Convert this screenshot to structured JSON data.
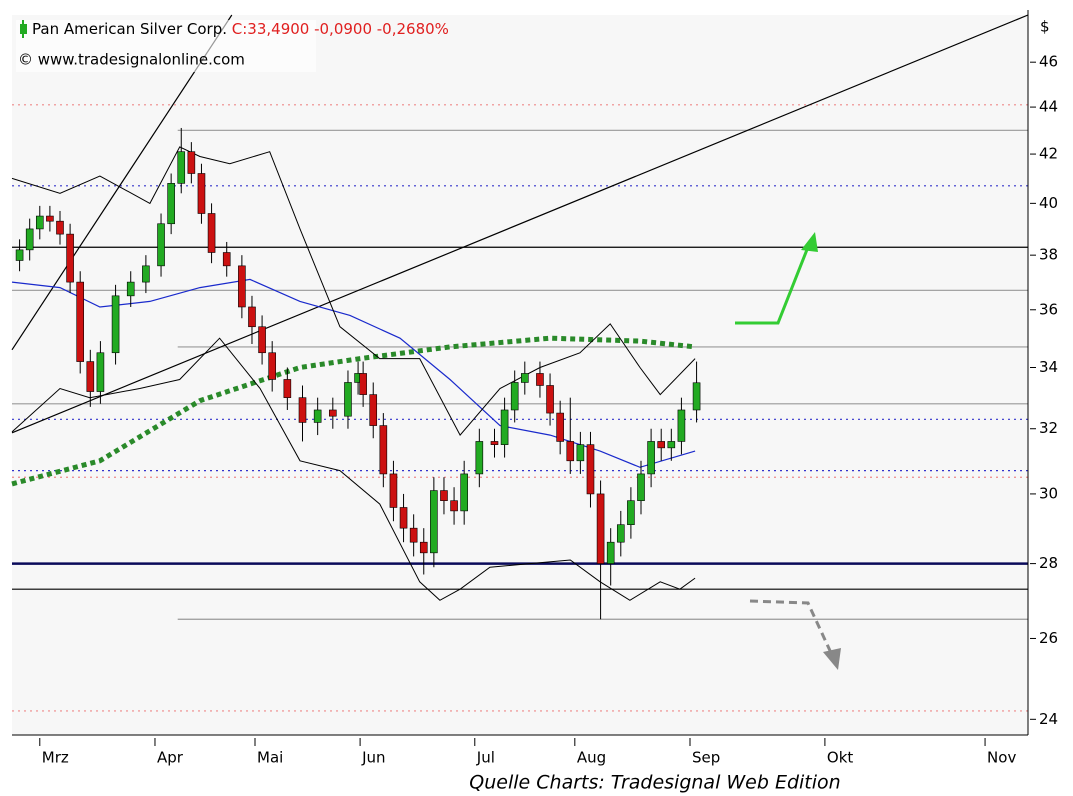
{
  "chart_data": {
    "type": "candlestick",
    "title": "Pan American Silver Corp.",
    "quote": "C:33,4900 -0,0900 -0,2680%",
    "copyright": "© www.tradesignalonline.com",
    "y_axis_label": "$",
    "source": "Quelle Charts: Tradesignal Web Edition",
    "log_y": true,
    "up_color": "#22aa22",
    "down_color": "#cc1111",
    "xlim": [
      -5.5,
      195.6
    ],
    "ylim": [
      23.63,
      48.2
    ],
    "yticks": [
      24,
      26,
      28,
      30,
      32,
      34,
      36,
      38,
      40,
      42,
      44,
      46
    ],
    "xticks": [
      {
        "value": 0,
        "label": "Mrz"
      },
      {
        "value": 22.8,
        "label": "Apr"
      },
      {
        "value": 42.6,
        "label": "Mai"
      },
      {
        "value": 63.4,
        "label": "Jun"
      },
      {
        "value": 86.1,
        "label": "Jul"
      },
      {
        "value": 105.9,
        "label": "Aug"
      },
      {
        "value": 128.7,
        "label": "Sep"
      },
      {
        "value": 155.4,
        "label": "Okt"
      },
      {
        "value": 187.1,
        "label": "Nov"
      }
    ],
    "x": [
      -4,
      -2,
      0,
      2,
      4,
      6,
      8,
      10,
      12,
      15,
      18,
      21,
      24,
      26,
      28,
      30,
      32,
      34,
      37,
      40,
      42,
      44,
      46,
      49,
      52,
      55,
      58,
      61,
      63,
      64,
      66,
      68,
      70,
      72,
      74,
      76,
      78,
      80,
      82,
      84,
      87,
      90,
      92,
      94,
      96,
      99,
      101,
      103,
      105,
      107,
      109,
      111,
      113,
      115,
      117,
      119,
      121,
      123,
      125,
      127,
      130
    ],
    "open": [
      37.8,
      38.2,
      39.0,
      39.5,
      39.3,
      38.8,
      37.0,
      34.2,
      33.2,
      34.5,
      36.5,
      37.0,
      37.6,
      39.2,
      40.8,
      42.1,
      41.2,
      39.6,
      38.1,
      37.6,
      36.1,
      35.4,
      34.5,
      33.6,
      33.0,
      32.2,
      32.6,
      32.4,
      33.5,
      33.8,
      33.1,
      32.1,
      30.6,
      29.6,
      29.0,
      28.6,
      28.3,
      30.1,
      29.8,
      29.5,
      30.6,
      31.6,
      31.5,
      32.6,
      33.5,
      33.8,
      33.4,
      32.5,
      31.6,
      31.0,
      31.5,
      30.0,
      28.0,
      28.6,
      29.1,
      29.8,
      30.6,
      31.6,
      31.4,
      31.6,
      32.6
    ],
    "high": [
      38.6,
      39.4,
      39.9,
      39.9,
      39.7,
      39.2,
      37.4,
      34.6,
      34.9,
      36.9,
      37.4,
      38.0,
      39.6,
      41.2,
      43.1,
      42.5,
      41.6,
      40.0,
      38.5,
      38.0,
      36.5,
      35.8,
      34.9,
      34.0,
      33.4,
      33.0,
      33.0,
      33.9,
      34.2,
      34.2,
      33.5,
      32.5,
      31.0,
      30.0,
      29.4,
      29.0,
      30.5,
      30.5,
      30.2,
      31.0,
      32.0,
      32.0,
      33.0,
      33.9,
      34.2,
      34.2,
      33.8,
      32.9,
      33.0,
      31.9,
      31.9,
      30.4,
      29.0,
      29.5,
      30.2,
      31.0,
      32.0,
      32.0,
      32.0,
      33.0,
      34.2
    ],
    "low": [
      37.4,
      37.8,
      38.6,
      38.9,
      38.4,
      36.6,
      33.8,
      32.7,
      32.8,
      34.1,
      36.1,
      36.6,
      37.2,
      38.8,
      40.4,
      40.8,
      39.2,
      37.7,
      37.2,
      35.7,
      34.8,
      34.1,
      33.2,
      32.6,
      31.6,
      31.8,
      32.0,
      32.0,
      33.1,
      32.7,
      31.7,
      30.2,
      29.2,
      28.6,
      28.2,
      27.7,
      27.9,
      29.4,
      29.1,
      29.1,
      30.2,
      31.1,
      31.1,
      32.2,
      33.1,
      33.0,
      32.1,
      31.2,
      30.6,
      30.6,
      29.6,
      26.5,
      27.4,
      28.2,
      28.7,
      29.4,
      30.2,
      31.0,
      31.0,
      31.2,
      32.2
    ],
    "close": [
      38.2,
      39.0,
      39.5,
      39.3,
      38.8,
      37.0,
      34.2,
      33.2,
      34.5,
      36.5,
      37.0,
      37.6,
      39.2,
      40.8,
      42.1,
      41.2,
      39.6,
      38.1,
      37.6,
      36.1,
      35.4,
      34.5,
      33.6,
      33.0,
      32.2,
      32.6,
      32.4,
      33.5,
      33.8,
      33.1,
      32.1,
      30.6,
      29.6,
      29.0,
      28.6,
      28.3,
      30.1,
      29.8,
      29.5,
      30.6,
      31.6,
      31.5,
      32.6,
      33.5,
      33.8,
      33.4,
      32.5,
      31.6,
      31.0,
      31.5,
      30.0,
      28.0,
      28.6,
      29.1,
      29.8,
      30.6,
      31.6,
      31.4,
      31.6,
      32.6,
      33.49
    ],
    "levels": [
      {
        "value": 44.1,
        "color": "#e88",
        "style": "dotted"
      },
      {
        "value": 43.0,
        "color": "#999",
        "style": "solid",
        "x_start": 27.3
      },
      {
        "value": 40.7,
        "color": "#33c",
        "style": "dotted"
      },
      {
        "value": 38.3,
        "color": "#000",
        "style": "solid"
      },
      {
        "value": 36.7,
        "color": "#999",
        "style": "solid"
      },
      {
        "value": 34.7,
        "color": "#999",
        "style": "solid",
        "x_start": 27.3
      },
      {
        "value": 32.8,
        "color": "#999",
        "style": "solid"
      },
      {
        "value": 32.3,
        "color": "#33c",
        "style": "dotted"
      },
      {
        "value": 30.7,
        "color": "#33c",
        "style": "dotted"
      },
      {
        "value": 30.5,
        "color": "#e88",
        "style": "dotted"
      },
      {
        "value": 28.0,
        "color": "#0a0a5a",
        "style": "thick"
      },
      {
        "value": 27.3,
        "color": "#000",
        "style": "solid"
      },
      {
        "value": 26.5,
        "color": "#999",
        "style": "solid",
        "x_start": 27.3
      },
      {
        "value": 24.2,
        "color": "#e88",
        "style": "dotted"
      }
    ],
    "overlays": [
      {
        "color": "#000",
        "style": "solid",
        "x": [
          -5.5,
          195.6
        ],
        "values": [
          31.87,
          48.2
        ]
      },
      {
        "color": "#000",
        "style": "solid",
        "x": [
          -5.5,
          38
        ],
        "values": [
          34.6,
          48.2
        ]
      },
      {
        "color": "#2a8a2a",
        "style": "dotted-thick",
        "x": [
          -5.5,
          11.9,
          31.7,
          51.5,
          63.4,
          81.2,
          101,
          118.8,
          129.7
        ],
        "values": [
          30.3,
          31.0,
          32.9,
          34.0,
          34.3,
          34.7,
          35.0,
          34.9,
          34.7
        ]
      },
      {
        "color": "#1a2acc",
        "style": "solid",
        "x": [
          -5.5,
          4,
          11.9,
          21.8,
          31.7,
          41.6,
          51.5,
          61.4,
          71.3,
          81.2,
          91.1,
          101,
          110.9,
          118.8,
          129.7
        ],
        "values": [
          37.0,
          36.8,
          36.1,
          36.3,
          36.8,
          37.1,
          36.3,
          35.8,
          35.0,
          33.6,
          32.1,
          31.8,
          31.3,
          30.8,
          31.3
        ]
      },
      {
        "color": "#000",
        "style": "thin",
        "x": [
          -5.5,
          4,
          11.9,
          21.8,
          27.7,
          31.7,
          37.6,
          45.5,
          51.5,
          59.4,
          67.3,
          75.2,
          83.2,
          91.1,
          99,
          106.9,
          112.9,
          118.8,
          122.8,
          129.7
        ],
        "values": [
          41.0,
          40.4,
          41.1,
          40.0,
          42.3,
          41.9,
          41.6,
          42.1,
          39.0,
          35.4,
          34.3,
          34.3,
          31.8,
          33.3,
          34.0,
          34.5,
          35.5,
          34.0,
          33.1,
          34.3
        ]
      },
      {
        "color": "#000",
        "style": "thin",
        "x": [
          -5.5,
          4,
          9.9,
          19.8,
          27.7,
          35.6,
          43.6,
          51.5,
          59.4,
          67.3,
          75.2,
          79.2,
          83.2,
          89.1,
          97,
          105,
          110.9,
          116.8,
          122.8,
          126.7,
          129.7
        ],
        "values": [
          31.9,
          33.3,
          33.0,
          33.3,
          33.6,
          35.0,
          33.3,
          31.0,
          30.7,
          29.7,
          27.5,
          27.0,
          27.3,
          27.9,
          28.0,
          28.1,
          27.5,
          27.0,
          27.5,
          27.3,
          27.6
        ]
      }
    ]
  }
}
